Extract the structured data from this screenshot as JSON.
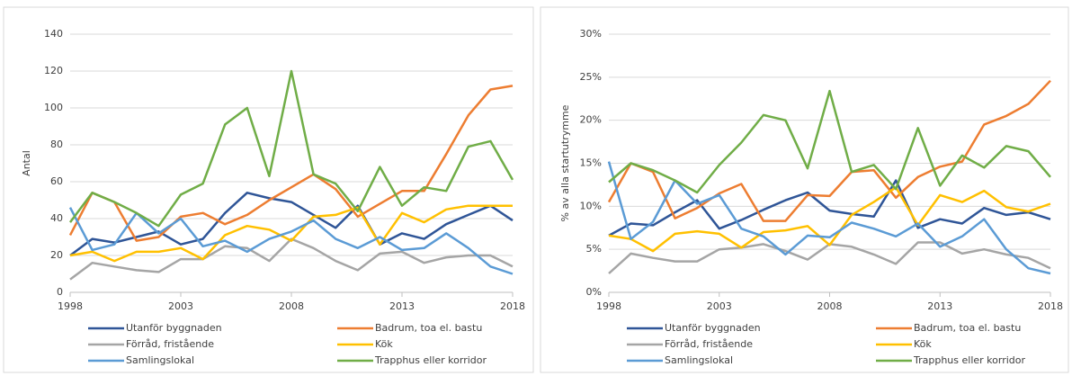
{
  "chart_data": [
    {
      "type": "line",
      "y_label": "Antal",
      "x": [
        1998,
        1999,
        2000,
        2001,
        2002,
        2003,
        2004,
        2005,
        2006,
        2007,
        2008,
        2009,
        2010,
        2011,
        2012,
        2013,
        2014,
        2015,
        2016,
        2017,
        2018
      ],
      "xlim": [
        1998,
        2018
      ],
      "xticks": [
        1998,
        2003,
        2008,
        2013,
        2018
      ],
      "ylim": [
        0,
        140
      ],
      "yticks": [
        0,
        20,
        40,
        60,
        80,
        100,
        120,
        140
      ],
      "grid": true,
      "series": [
        {
          "name": "Utanför byggnaden",
          "color": "#2F5597",
          "values": [
            20,
            29,
            27,
            30,
            33,
            26,
            29,
            43,
            54,
            51,
            49,
            42,
            35,
            47,
            26,
            32,
            29,
            37,
            42,
            47,
            39
          ]
        },
        {
          "name": "Badrum, toa el. bastu",
          "color": "#ED7D31",
          "values": [
            31,
            54,
            49,
            28,
            30,
            41,
            43,
            37,
            42,
            50,
            57,
            64,
            56,
            41,
            48,
            55,
            55,
            75,
            96,
            110,
            112
          ]
        },
        {
          "name": "Förråd, fristående",
          "color": "#A5A5A5",
          "values": [
            7,
            16,
            14,
            12,
            11,
            18,
            18,
            25,
            24,
            17,
            29,
            24,
            17,
            12,
            21,
            22,
            16,
            19,
            20,
            20,
            14
          ]
        },
        {
          "name": "Kök",
          "color": "#FFC000",
          "values": [
            20,
            22,
            17,
            22,
            22,
            24,
            18,
            31,
            36,
            34,
            28,
            41,
            42,
            46,
            26,
            43,
            38,
            45,
            47,
            47,
            47
          ]
        },
        {
          "name": "Samlingslokal",
          "color": "#5B9BD5",
          "values": [
            46,
            23,
            26,
            43,
            32,
            40,
            25,
            28,
            22,
            29,
            33,
            39,
            29,
            24,
            30,
            23,
            24,
            32,
            24,
            14,
            10
          ]
        },
        {
          "name": "Trapphus eller korridor",
          "color": "#70AD47",
          "values": [
            38,
            54,
            49,
            43,
            36,
            53,
            59,
            91,
            100,
            63,
            120,
            64,
            59,
            44,
            68,
            47,
            57,
            55,
            79,
            82,
            61
          ]
        }
      ]
    },
    {
      "type": "line",
      "y_label": "% av alla startutrymme",
      "x": [
        1998,
        1999,
        2000,
        2001,
        2002,
        2003,
        2004,
        2005,
        2006,
        2007,
        2008,
        2009,
        2010,
        2011,
        2012,
        2013,
        2014,
        2015,
        2016,
        2017,
        2018
      ],
      "xlim": [
        1998,
        2018
      ],
      "xticks": [
        1998,
        2003,
        2008,
        2013,
        2018
      ],
      "ylim": [
        0,
        30
      ],
      "yticks": [
        {
          "value": 0,
          "label": "0%"
        },
        {
          "value": 5,
          "label": "5%"
        },
        {
          "value": 10,
          "label": "10%"
        },
        {
          "value": 15,
          "label": "15%"
        },
        {
          "value": 20,
          "label": "20%"
        },
        {
          "value": 25,
          "label": "25%"
        },
        {
          "value": 30,
          "label": "30%"
        }
      ],
      "grid": true,
      "series": [
        {
          "name": "Utanför byggnaden",
          "color": "#2F5597",
          "values": [
            6.6,
            8.0,
            7.8,
            9.3,
            10.7,
            7.4,
            8.4,
            9.6,
            10.7,
            11.6,
            9.5,
            9.1,
            8.8,
            13.0,
            7.5,
            8.5,
            8.0,
            9.8,
            9.0,
            9.3,
            8.5
          ]
        },
        {
          "name": "Badrum, toa el. bastu",
          "color": "#ED7D31",
          "values": [
            10.5,
            15.0,
            14.0,
            8.6,
            9.8,
            11.5,
            12.6,
            8.3,
            8.3,
            11.3,
            11.2,
            14.0,
            14.2,
            11.0,
            13.4,
            14.6,
            15.2,
            19.5,
            20.5,
            21.9,
            24.6
          ]
        },
        {
          "name": "Förråd, fristående",
          "color": "#A5A5A5",
          "values": [
            2.2,
            4.5,
            4.0,
            3.6,
            3.6,
            5.0,
            5.2,
            5.6,
            4.8,
            3.8,
            5.6,
            5.3,
            4.4,
            3.3,
            5.8,
            5.8,
            4.5,
            5.0,
            4.4,
            4.0,
            2.8
          ]
        },
        {
          "name": "Kök",
          "color": "#FFC000",
          "values": [
            6.6,
            6.2,
            4.8,
            6.8,
            7.1,
            6.8,
            5.2,
            7.0,
            7.2,
            7.7,
            5.5,
            9.0,
            10.5,
            12.2,
            7.8,
            11.3,
            10.5,
            11.8,
            9.9,
            9.4,
            10.3
          ]
        },
        {
          "name": "Samlingslokal",
          "color": "#5B9BD5",
          "values": [
            15.2,
            6.2,
            8.2,
            13.0,
            10.3,
            11.3,
            7.4,
            6.5,
            4.4,
            6.6,
            6.4,
            8.1,
            7.4,
            6.5,
            8.0,
            5.3,
            6.5,
            8.5,
            5.0,
            2.8,
            2.2
          ]
        },
        {
          "name": "Trapphus eller korridor",
          "color": "#70AD47",
          "values": [
            12.8,
            15.0,
            14.2,
            13.0,
            11.6,
            14.8,
            17.4,
            20.6,
            20.0,
            14.4,
            23.4,
            14.0,
            14.8,
            12.0,
            19.1,
            12.4,
            15.9,
            14.5,
            17.0,
            16.4,
            13.4
          ]
        }
      ]
    }
  ]
}
